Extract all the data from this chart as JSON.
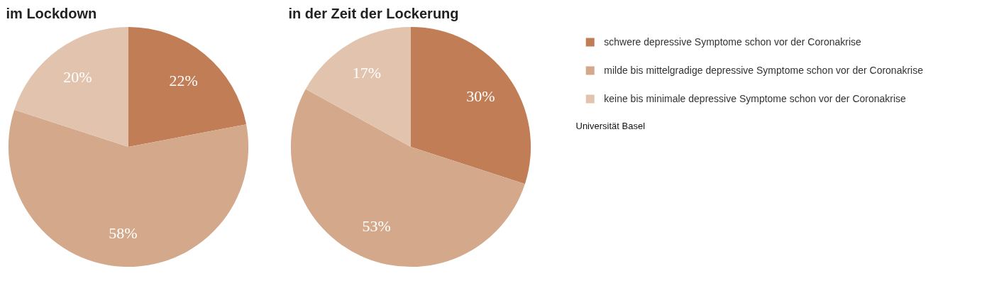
{
  "chart_data": [
    {
      "type": "pie",
      "title": "im Lockdown",
      "categories": [
        "schwere depressive Symptome schon vor der Coronakrise",
        "milde bis mittelgradige depressive Symptome schon vor der Coronakrise",
        "keine bis minimale depressive Symptome schon vor der Coronakrise"
      ],
      "values": [
        22,
        58,
        20
      ],
      "value_labels": [
        "22%",
        "58%",
        "20%"
      ],
      "colors": [
        "#c17d55",
        "#d4a98b",
        "#e2c4ae"
      ],
      "legend": "right"
    },
    {
      "type": "pie",
      "title": "in der Zeit der Lockerung",
      "categories": [
        null,
        null,
        null
      ],
      "values": [
        30,
        53,
        17
      ],
      "value_labels": [
        "30%",
        "53%",
        "17%"
      ],
      "colors": [
        "#c17d55",
        "#d4a98b",
        "#e2c4ae"
      ],
      "annotations": [
        "Universität Basel"
      ]
    }
  ]
}
